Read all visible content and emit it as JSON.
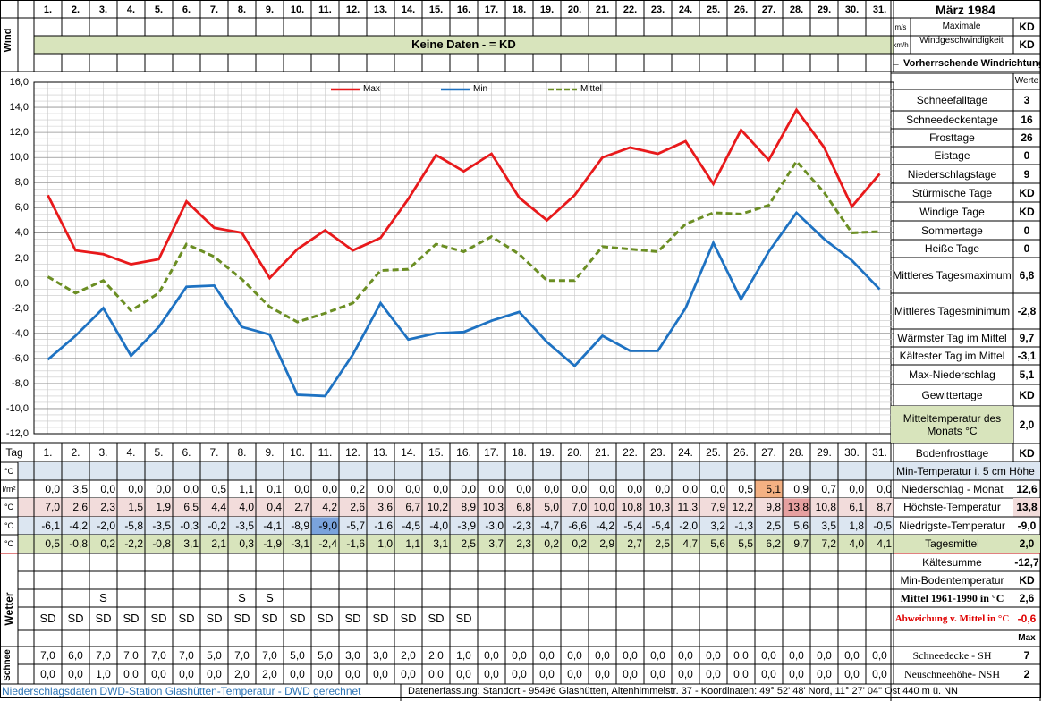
{
  "header": {
    "title": "März 1984",
    "days": [
      "1.",
      "2.",
      "3.",
      "4.",
      "5.",
      "6.",
      "7.",
      "8.",
      "9.",
      "10.",
      "11.",
      "12.",
      "13.",
      "14.",
      "15.",
      "16.",
      "17.",
      "18.",
      "19.",
      "20.",
      "21.",
      "22.",
      "23.",
      "24.",
      "25.",
      "26.",
      "27.",
      "28.",
      "29.",
      "30.",
      "31."
    ],
    "wind_label": "Wind",
    "no_data_banner": "Keine Daten -  = KD",
    "unit_ms": "m/s",
    "unit_kmh": "km/h",
    "max_wind_label": "Maximale Windgeschwindigkeit",
    "max_wind_ms": "KD",
    "max_wind_kmh": "KD",
    "dominant_wind": "← Vorherrschende Windrichtung",
    "werte": "Werte",
    "tag_label": "Tag"
  },
  "stats_right": [
    {
      "label": "Schneefalltage",
      "value": "3"
    },
    {
      "label": "Schneedeckentage",
      "value": "16"
    },
    {
      "label": "Frosttage",
      "value": "26"
    },
    {
      "label": "Eistage",
      "value": "0"
    },
    {
      "label": "Niederschlagstage",
      "value": "9"
    },
    {
      "label": "Stürmische Tage",
      "value": "KD"
    },
    {
      "label": "Windige Tage",
      "value": "KD"
    },
    {
      "label": "Sommertage",
      "value": "0"
    },
    {
      "label": "Heiße Tage",
      "value": "0"
    },
    {
      "label": "Mittleres Tagesmaximum",
      "value": "6,8"
    },
    {
      "label": "Mittleres Tagesminimum",
      "value": "-2,8"
    },
    {
      "label": "Wärmster Tag im Mittel",
      "value": "9,7"
    },
    {
      "label": "Kältester Tag im Mittel",
      "value": "-3,1"
    },
    {
      "label": "Max-Niederschlag",
      "value": "5,1"
    },
    {
      "label": "Gewittertage",
      "value": "KD"
    },
    {
      "label": "Mitteltemperatur des Monats °C",
      "value": "2,0"
    },
    {
      "label": "Bodenfrosttage",
      "value": "KD"
    }
  ],
  "rows": {
    "min5_label": "Min-Temperatur i. 5 cm Höhe",
    "unit_c": "°C",
    "unit_lm": "l/m²",
    "precip_label": "Niederschlag - Monat",
    "precip_total": "12,6",
    "precip": [
      "0,0",
      "3,5",
      "0,0",
      "0,0",
      "0,0",
      "0,0",
      "0,5",
      "1,1",
      "0,1",
      "0,0",
      "0,0",
      "0,2",
      "0,0",
      "0,0",
      "0,0",
      "0,0",
      "0,0",
      "0,0",
      "0,0",
      "0,0",
      "0,0",
      "0,0",
      "0,0",
      "0,0",
      "0,0",
      "0,5",
      "5,1",
      "0,9",
      "0,7",
      "0,0",
      "0,0"
    ],
    "max_label": "Höchste-Temperatur",
    "max_total": "13,8",
    "max": [
      "7,0",
      "2,6",
      "2,3",
      "1,5",
      "1,9",
      "6,5",
      "4,4",
      "4,0",
      "0,4",
      "2,7",
      "4,2",
      "2,6",
      "3,6",
      "6,7",
      "10,2",
      "8,9",
      "10,3",
      "6,8",
      "5,0",
      "7,0",
      "10,0",
      "10,8",
      "10,3",
      "11,3",
      "7,9",
      "12,2",
      "9,8",
      "13,8",
      "10,8",
      "6,1",
      "8,7"
    ],
    "min_label": "Niedrigste-Temperatur",
    "min_total": "-9,0",
    "min": [
      "-6,1",
      "-4,2",
      "-2,0",
      "-5,8",
      "-3,5",
      "-0,3",
      "-0,2",
      "-3,5",
      "-4,1",
      "-8,9",
      "-9,0",
      "-5,7",
      "-1,6",
      "-4,5",
      "-4,0",
      "-3,9",
      "-3,0",
      "-2,3",
      "-4,7",
      "-6,6",
      "-4,2",
      "-5,4",
      "-5,4",
      "-2,0",
      "3,2",
      "-1,3",
      "2,5",
      "5,6",
      "3,5",
      "1,8",
      "-0,5"
    ],
    "mean_label": "Tagesmittel",
    "mean_total": "2,0",
    "mean": [
      "0,5",
      "-0,8",
      "0,2",
      "-2,2",
      "-0,8",
      "3,1",
      "2,1",
      "0,3",
      "-1,9",
      "-3,1",
      "-2,4",
      "-1,6",
      "1,0",
      "1,1",
      "3,1",
      "2,5",
      "3,7",
      "2,3",
      "0,2",
      "0,2",
      "2,9",
      "2,7",
      "2,5",
      "4,7",
      "5,6",
      "5,5",
      "6,2",
      "9,7",
      "7,2",
      "4,0",
      "4,1"
    ]
  },
  "lower": {
    "kaeltesumme_label": "Kältesumme",
    "kaeltesumme": "-12,7",
    "minboden_label": "Min-Bodentemperatur",
    "minboden": "KD",
    "mittel_label": "Mittel 1961-1990 in °C",
    "mittel": "2,6",
    "abweichung_label": "Abweichung v. Mittel in °C",
    "abweichung": "-0,6",
    "max_label": "Max",
    "wetter_label": "Wetter",
    "schnee_label": "Schnee",
    "wetter_s": [
      "",
      "",
      "S",
      "",
      "",
      "",
      "",
      "S",
      "S",
      "",
      "",
      "",
      "",
      "",
      "",
      "",
      "",
      "",
      "",
      "",
      "",
      "",
      "",
      "",
      "",
      "",
      "",
      "",
      "",
      "",
      ""
    ],
    "wetter_sd": [
      "SD",
      "SD",
      "SD",
      "SD",
      "SD",
      "SD",
      "SD",
      "SD",
      "SD",
      "SD",
      "SD",
      "SD",
      "SD",
      "SD",
      "SD",
      "SD",
      "",
      "",
      "",
      "",
      "",
      "",
      "",
      "",
      "",
      "",
      "",
      "",
      "",
      "",
      ""
    ],
    "sh_label": "Schneedecke -  SH",
    "sh_max": "7",
    "sh": [
      "7,0",
      "6,0",
      "7,0",
      "7,0",
      "7,0",
      "7,0",
      "5,0",
      "7,0",
      "7,0",
      "5,0",
      "5,0",
      "3,0",
      "3,0",
      "2,0",
      "2,0",
      "1,0",
      "0,0",
      "0,0",
      "0,0",
      "0,0",
      "0,0",
      "0,0",
      "0,0",
      "0,0",
      "0,0",
      "0,0",
      "0,0",
      "0,0",
      "0,0",
      "0,0",
      "0,0"
    ],
    "nsh_label": "Neuschneehöhe- NSH",
    "nsh_max": "2",
    "nsh": [
      "0,0",
      "0,0",
      "1,0",
      "0,0",
      "0,0",
      "0,0",
      "0,0",
      "2,0",
      "2,0",
      "0,0",
      "0,0",
      "0,0",
      "0,0",
      "0,0",
      "0,0",
      "0,0",
      "0,0",
      "0,0",
      "0,0",
      "0,0",
      "0,0",
      "0,0",
      "0,0",
      "0,0",
      "0,0",
      "0,0",
      "0,0",
      "0,0",
      "0,0",
      "0,0",
      "0,0"
    ]
  },
  "footer": {
    "left": "Niederschlagsdaten DWD-Station Glashütten-Temperatur -  DWD gerechnet",
    "right": "Datenerfassung: Standort - 95496 Glashütten, Altenhimmelstr. 37 - Koordinaten: 49° 52' 48' Nord,  11° 27' 04\" Ost  440 m ü. NN"
  },
  "colors": {
    "max": "#e8191b",
    "min": "#1e72c2",
    "mean": "#6b8e23",
    "banner_bg": "#d8e4bc",
    "blue_row": "#dce6f1",
    "pink_row": "#f2dcdb",
    "green_row": "#d8e4bc"
  },
  "chart_data": {
    "type": "line",
    "x": [
      1,
      2,
      3,
      4,
      5,
      6,
      7,
      8,
      9,
      10,
      11,
      12,
      13,
      14,
      15,
      16,
      17,
      18,
      19,
      20,
      21,
      22,
      23,
      24,
      25,
      26,
      27,
      28,
      29,
      30,
      31
    ],
    "series": [
      {
        "name": "Max",
        "values": [
          7.0,
          2.6,
          2.3,
          1.5,
          1.9,
          6.5,
          4.4,
          4.0,
          0.4,
          2.7,
          4.2,
          2.6,
          3.6,
          6.7,
          10.2,
          8.9,
          10.3,
          6.8,
          5.0,
          7.0,
          10.0,
          10.8,
          10.3,
          11.3,
          7.9,
          12.2,
          9.8,
          13.8,
          10.8,
          6.1,
          8.7
        ]
      },
      {
        "name": "Min",
        "values": [
          -6.1,
          -4.2,
          -2.0,
          -5.8,
          -3.5,
          -0.3,
          -0.2,
          -3.5,
          -4.1,
          -8.9,
          -9.0,
          -5.7,
          -1.6,
          -4.5,
          -4.0,
          -3.9,
          -3.0,
          -2.3,
          -4.7,
          -6.6,
          -4.2,
          -5.4,
          -5.4,
          -2.0,
          3.2,
          -1.3,
          2.5,
          5.6,
          3.5,
          1.8,
          -0.5
        ]
      },
      {
        "name": "Mittel",
        "values": [
          0.5,
          -0.8,
          0.2,
          -2.2,
          -0.8,
          3.1,
          2.1,
          0.3,
          -1.9,
          -3.1,
          -2.4,
          -1.6,
          1.0,
          1.1,
          3.1,
          2.5,
          3.7,
          2.3,
          0.2,
          0.2,
          2.9,
          2.7,
          2.5,
          4.7,
          5.6,
          5.5,
          6.2,
          9.7,
          7.2,
          4.0,
          4.1
        ]
      }
    ],
    "ylim": [
      -12,
      16
    ],
    "yticks": [
      "16,0",
      "14,0",
      "12,0",
      "10,0",
      "8,0",
      "6,0",
      "4,0",
      "2,0",
      "0,0",
      "-2,0",
      "-4,0",
      "-6,0",
      "-8,0",
      "-10,0",
      "-12,0"
    ],
    "legend": "top"
  }
}
